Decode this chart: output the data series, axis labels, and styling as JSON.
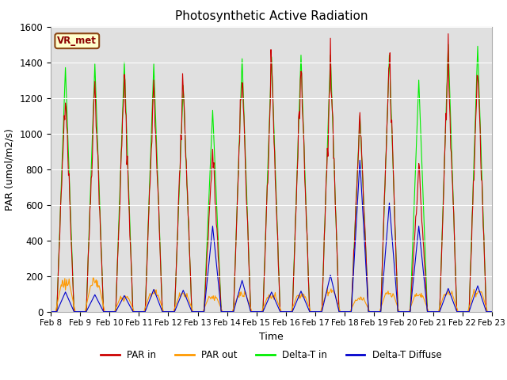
{
  "title": "Photosynthetic Active Radiation",
  "ylabel": "PAR (umol/m2/s)",
  "xlabel": "Time",
  "annotation": "VR_met",
  "ylim": [
    0,
    1600
  ],
  "background_color": "#e0e0e0",
  "legend_entries": [
    "PAR in",
    "PAR out",
    "Delta-T in",
    "Delta-T Diffuse"
  ],
  "colors": {
    "par_in": "#cc0000",
    "par_out": "#ff9900",
    "delta_t_in": "#00ee00",
    "delta_t_diffuse": "#0000cc"
  },
  "start_day": 8,
  "total_days": 15,
  "par_in_peaks": [
    1270,
    1300,
    1310,
    1300,
    1310,
    900,
    1350,
    1350,
    1390,
    1430,
    1100,
    1430,
    820,
    1420,
    1390
  ],
  "par_out_peaks": [
    160,
    155,
    80,
    100,
    90,
    80,
    95,
    85,
    90,
    110,
    70,
    100,
    90,
    100,
    110
  ],
  "delta_t_in_peaks": [
    1370,
    1390,
    1400,
    1390,
    1270,
    1130,
    1420,
    1430,
    1440,
    1440,
    1100,
    1440,
    1300,
    1500,
    1490
  ],
  "delta_t_diffuse_peaks": [
    110,
    95,
    90,
    125,
    120,
    480,
    175,
    110,
    115,
    205,
    850,
    610,
    480,
    130,
    145
  ]
}
